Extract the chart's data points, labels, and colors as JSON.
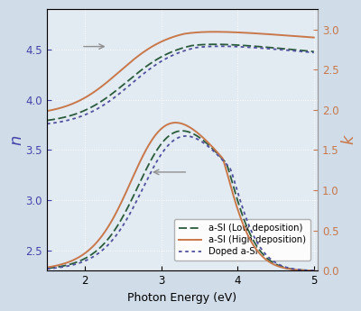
{
  "title": "",
  "xlabel": "Photon Energy (eV)",
  "ylabel_left": "n",
  "ylabel_right": "k",
  "xlim": [
    1.5,
    5.05
  ],
  "ylim_left": [
    2.3,
    4.9
  ],
  "ylim_right": [
    0.0,
    3.25
  ],
  "yticks_left": [
    2.5,
    3.0,
    3.5,
    4.0,
    4.5
  ],
  "yticks_right": [
    0.0,
    0.5,
    1.0,
    1.5,
    2.0,
    2.5,
    3.0
  ],
  "xticks": [
    2,
    3,
    4,
    5
  ],
  "fig_bg_color": "#d0dce8",
  "ax_bg_color": "#e2eaf2",
  "grid_color": "#ffffff",
  "line1_color": "#2a5c3c",
  "line2_color": "#c8784a",
  "line3_color": "#5050a0",
  "arrow_color": "#909090",
  "legend_labels": [
    "a-SI (Low deposition)",
    "a-SI (High deposition)",
    "Doped a-Si"
  ],
  "legend_fontsize": 7.2,
  "axis_label_color_left": "#4444aa",
  "axis_label_color_right": "#c8784a",
  "xlabel_fontsize": 9,
  "ylabel_fontsize": 13,
  "tick_fontsize": 8.5
}
